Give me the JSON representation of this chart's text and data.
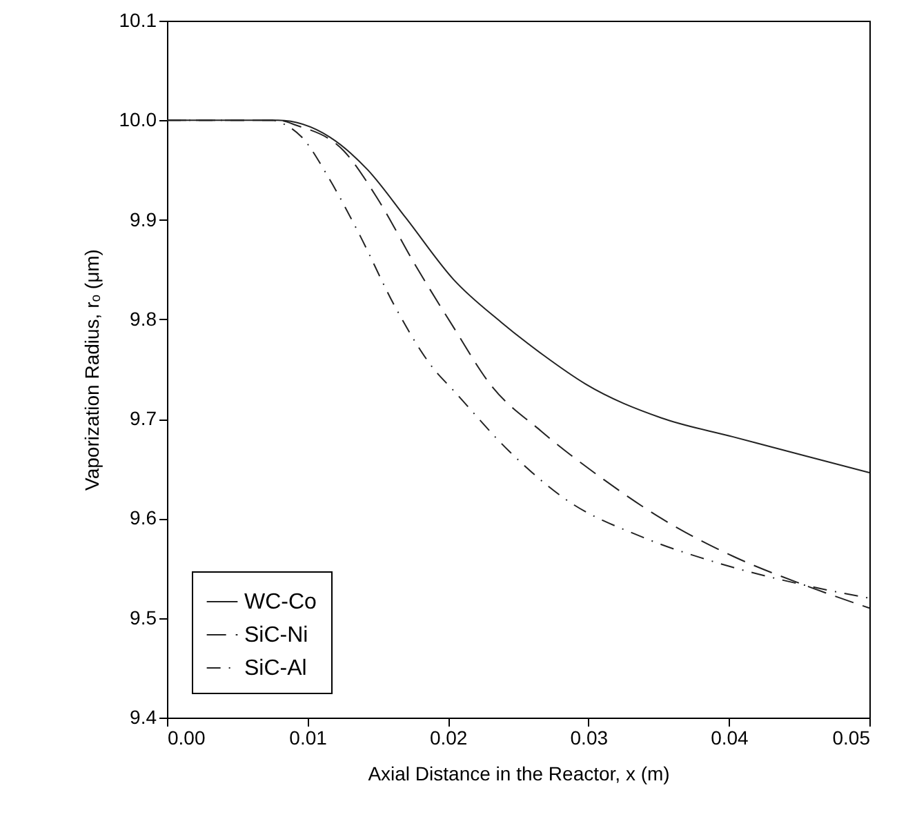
{
  "chart_data": {
    "type": "line",
    "xlabel": "Axial Distance in the Reactor, x (m)",
    "ylabel": "Vaporization Radius, rₒ (μm)",
    "xlim": [
      0,
      0.05
    ],
    "ylim": [
      9.4,
      10.1
    ],
    "xticks": [
      {
        "value": 0,
        "label": "0.00"
      },
      {
        "value": 0.01,
        "label": "0.01"
      },
      {
        "value": 0.02,
        "label": "0.02"
      },
      {
        "value": 0.03,
        "label": "0.03"
      },
      {
        "value": 0.04,
        "label": "0.04"
      },
      {
        "value": 0.05,
        "label": "0.05"
      }
    ],
    "yticks": [
      9.4,
      9.5,
      9.6,
      9.7,
      9.8,
      9.9,
      {
        "value": 10,
        "label": "10.0"
      },
      10.1
    ],
    "grid": false,
    "legend": "bottom left",
    "marker": "none",
    "series": [
      {
        "name": "WC-Co",
        "color": "#222222",
        "line_style": "solid",
        "x": [
          0,
          0.005,
          0.0079,
          0.0116,
          0.0143,
          0.017,
          0.0204,
          0.0238,
          0.0268,
          0.0298,
          0.0352,
          0.0403,
          0.0454,
          0.05
        ],
        "values": [
          10.0,
          10.0,
          10.0,
          9.983,
          9.95,
          9.902,
          9.84,
          9.797,
          9.764,
          9.735,
          9.701,
          9.682,
          9.663,
          9.646
        ]
      },
      {
        "name": "SiC-Ni",
        "color": "#222222",
        "line_style": "dashed",
        "x": [
          0,
          0.005,
          0.0079,
          0.0092,
          0.0126,
          0.015,
          0.0177,
          0.0204,
          0.023,
          0.0267,
          0.0311,
          0.0352,
          0.0403,
          0.0454,
          0.05
        ],
        "values": [
          10.0,
          10.0,
          10.0,
          9.995,
          9.969,
          9.921,
          9.854,
          9.792,
          9.735,
          9.687,
          9.639,
          9.6,
          9.562,
          9.533,
          9.51
        ]
      },
      {
        "name": "SiC-Al",
        "color": "#222222",
        "line_style": "dotted",
        "x": [
          0,
          0.005,
          0.0075,
          0.0082,
          0.0096,
          0.0116,
          0.0136,
          0.0163,
          0.019,
          0.0203,
          0.0244,
          0.0284,
          0.0339,
          0.0393,
          0.0454,
          0.05
        ],
        "values": [
          10.0,
          10.0,
          10.0,
          9.997,
          9.983,
          9.94,
          9.888,
          9.811,
          9.75,
          9.73,
          9.667,
          9.619,
          9.581,
          9.555,
          9.533,
          9.52
        ]
      }
    ]
  }
}
